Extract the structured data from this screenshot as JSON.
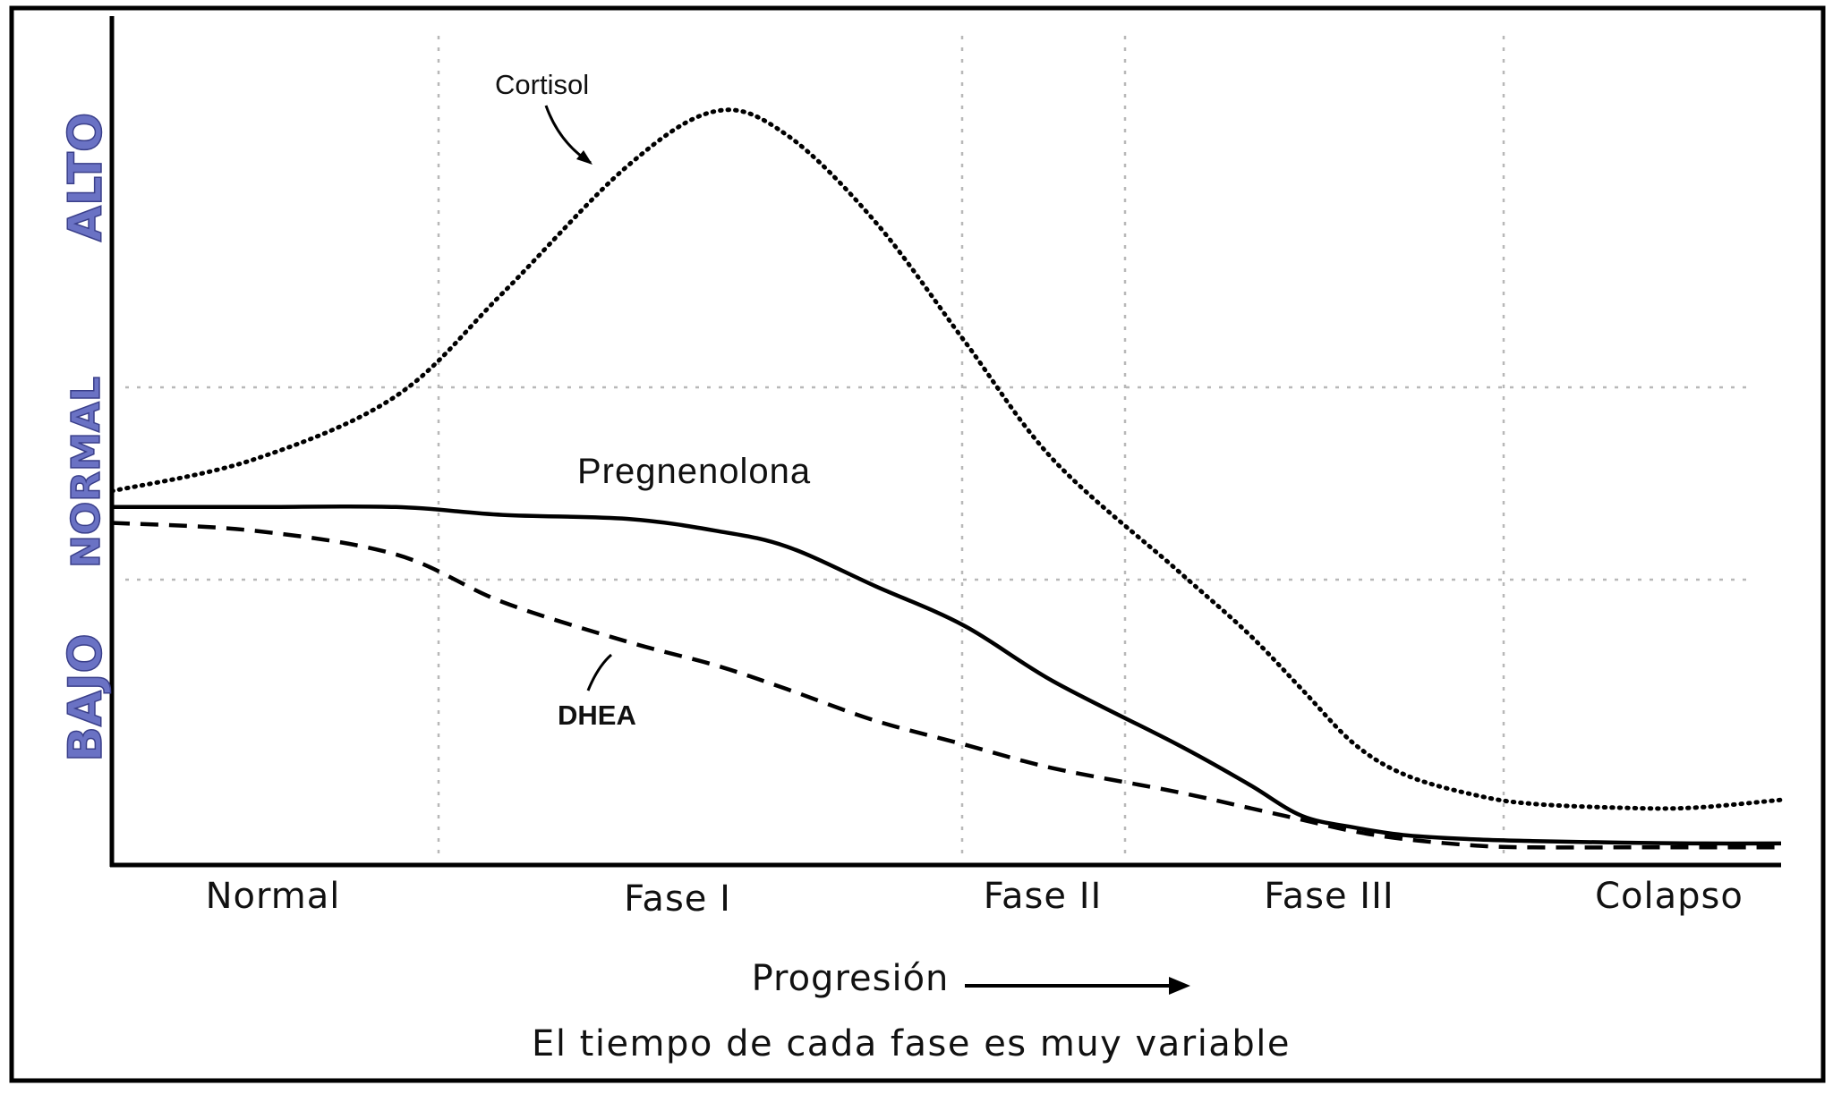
{
  "chart_data": {
    "type": "line",
    "categories": [
      "Normal",
      "Fase I",
      "Fase II",
      "Fase III",
      "Colapso"
    ],
    "xlabel": "Progresión",
    "note": "El tiempo de cada fase es muy variable",
    "y_levels": [
      "BAJO",
      "NORMAL",
      "ALTO"
    ],
    "grid": true,
    "x": [
      0,
      0.8,
      1.6,
      2.2,
      2.9,
      3.4,
      3.8,
      4.3,
      4.8,
      5.3,
      6.0,
      6.4,
      6.7,
      7.0,
      7.3,
      7.7,
      8.0,
      8.5,
      8.9,
      9.4
    ],
    "series": [
      {
        "name": "Cortisol",
        "style": "dotted",
        "values": [
          4.7,
          5.1,
          5.9,
          7.2,
          8.8,
          9.5,
          9.2,
          8.1,
          6.6,
          5.1,
          3.7,
          2.9,
          2.2,
          1.5,
          1.1,
          0.85,
          0.75,
          0.7,
          0.7,
          0.8
        ]
      },
      {
        "name": "Pregnenolona",
        "style": "solid",
        "values": [
          4.5,
          4.5,
          4.5,
          4.4,
          4.35,
          4.2,
          4.0,
          3.5,
          3.0,
          2.3,
          1.5,
          1.0,
          0.6,
          0.45,
          0.35,
          0.3,
          0.28,
          0.26,
          0.25,
          0.25
        ]
      },
      {
        "name": "DHEA",
        "style": "dashed",
        "values": [
          4.3,
          4.2,
          3.9,
          3.3,
          2.8,
          2.5,
          2.2,
          1.8,
          1.5,
          1.2,
          0.9,
          0.7,
          0.55,
          0.4,
          0.3,
          0.22,
          0.2,
          0.2,
          0.2,
          0.2
        ]
      }
    ],
    "ylim": [
      0,
      10
    ]
  }
}
